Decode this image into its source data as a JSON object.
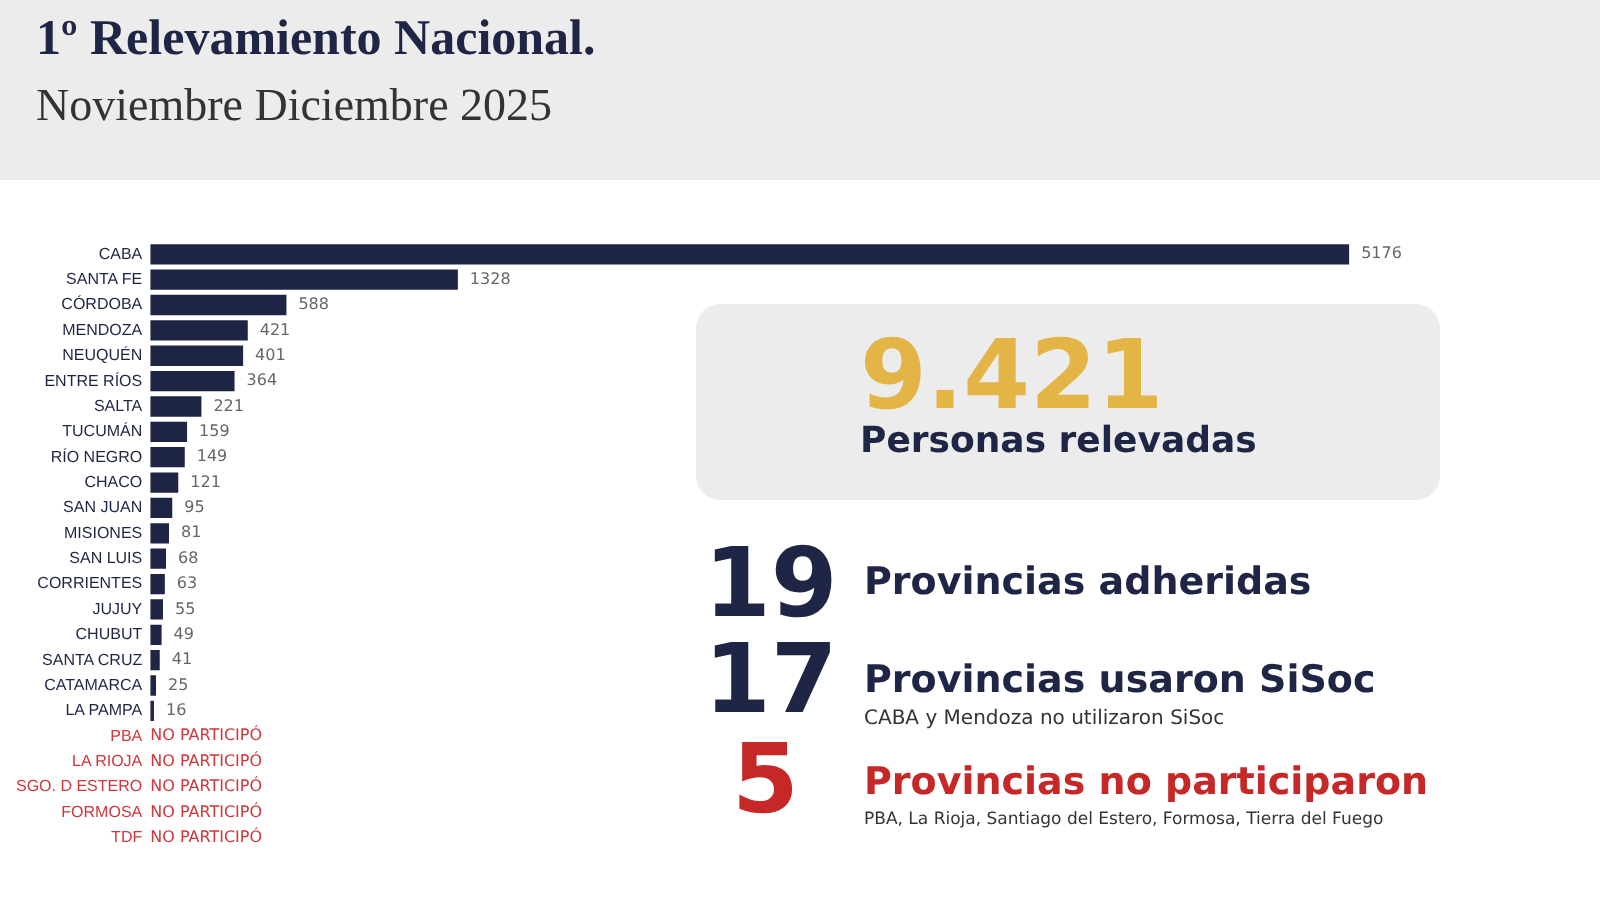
{
  "chart_data": [
    {
      "type": "bar",
      "orientation": "horizontal",
      "title": "1º Relevamiento Nacional.",
      "subtitle": "Noviembre Diciembre 2025",
      "categories": [
        "CABA",
        "SANTA FE",
        "CÓRDOBA",
        "MENDOZA",
        "NEUQUÉN",
        "ENTRE RÍOS",
        "SALTA",
        "TUCUMÁN",
        "RÍO NEGRO",
        "CHACO",
        "SAN JUAN",
        "MISIONES",
        "SAN LUIS",
        "CORRIENTES",
        "JUJUY",
        "CHUBUT",
        "SANTA CRUZ",
        "CATAMARCA",
        "LA PAMPA",
        "PBA",
        "LA RIOJA",
        "SGO. D ESTERO",
        "FORMOSA",
        "TDF"
      ],
      "values": [
        5176,
        1328,
        588,
        421,
        401,
        364,
        221,
        159,
        149,
        121,
        95,
        81,
        68,
        63,
        55,
        49,
        41,
        25,
        16,
        null,
        null,
        null,
        null,
        null
      ],
      "value_labels": [
        "5176",
        "1328",
        "588",
        "421",
        "401",
        "364",
        "221",
        "159",
        "149",
        "121",
        "95",
        "81",
        "68",
        "63",
        "55",
        "49",
        "41",
        "25",
        "16",
        "NO PARTICIPÓ",
        "NO PARTICIPÓ",
        "NO PARTICIPÓ",
        "NO PARTICIPÓ",
        "NO PARTICIPÓ"
      ],
      "colors": [
        "#1f2544",
        "#1f2544",
        "#1f2544",
        "#1f2544",
        "#1f2544",
        "#1f2544",
        "#1f2544",
        "#1f2544",
        "#1f2544",
        "#1f2544",
        "#1f2544",
        "#1f2544",
        "#1f2544",
        "#1f2544",
        "#1f2544",
        "#1f2544",
        "#1f2544",
        "#1f2544",
        "#1f2544",
        "#d0363a",
        "#d0363a",
        "#d0363a",
        "#d0363a",
        "#d0363a"
      ],
      "grid": false,
      "legend": false
    },
    {
      "type": "other",
      "annotations": [
        "9.421",
        "Personas relevadas",
        "19",
        "Provincias adheridas",
        "17",
        "Provincias usaron SiSoc",
        "CABA y Mendoza no utilizaron SiSoc",
        "5",
        "Provincias no participaron",
        "PBA, La Rioja, Santiago del Estero, Formosa, Tierra del Fuego"
      ]
    }
  ]
}
